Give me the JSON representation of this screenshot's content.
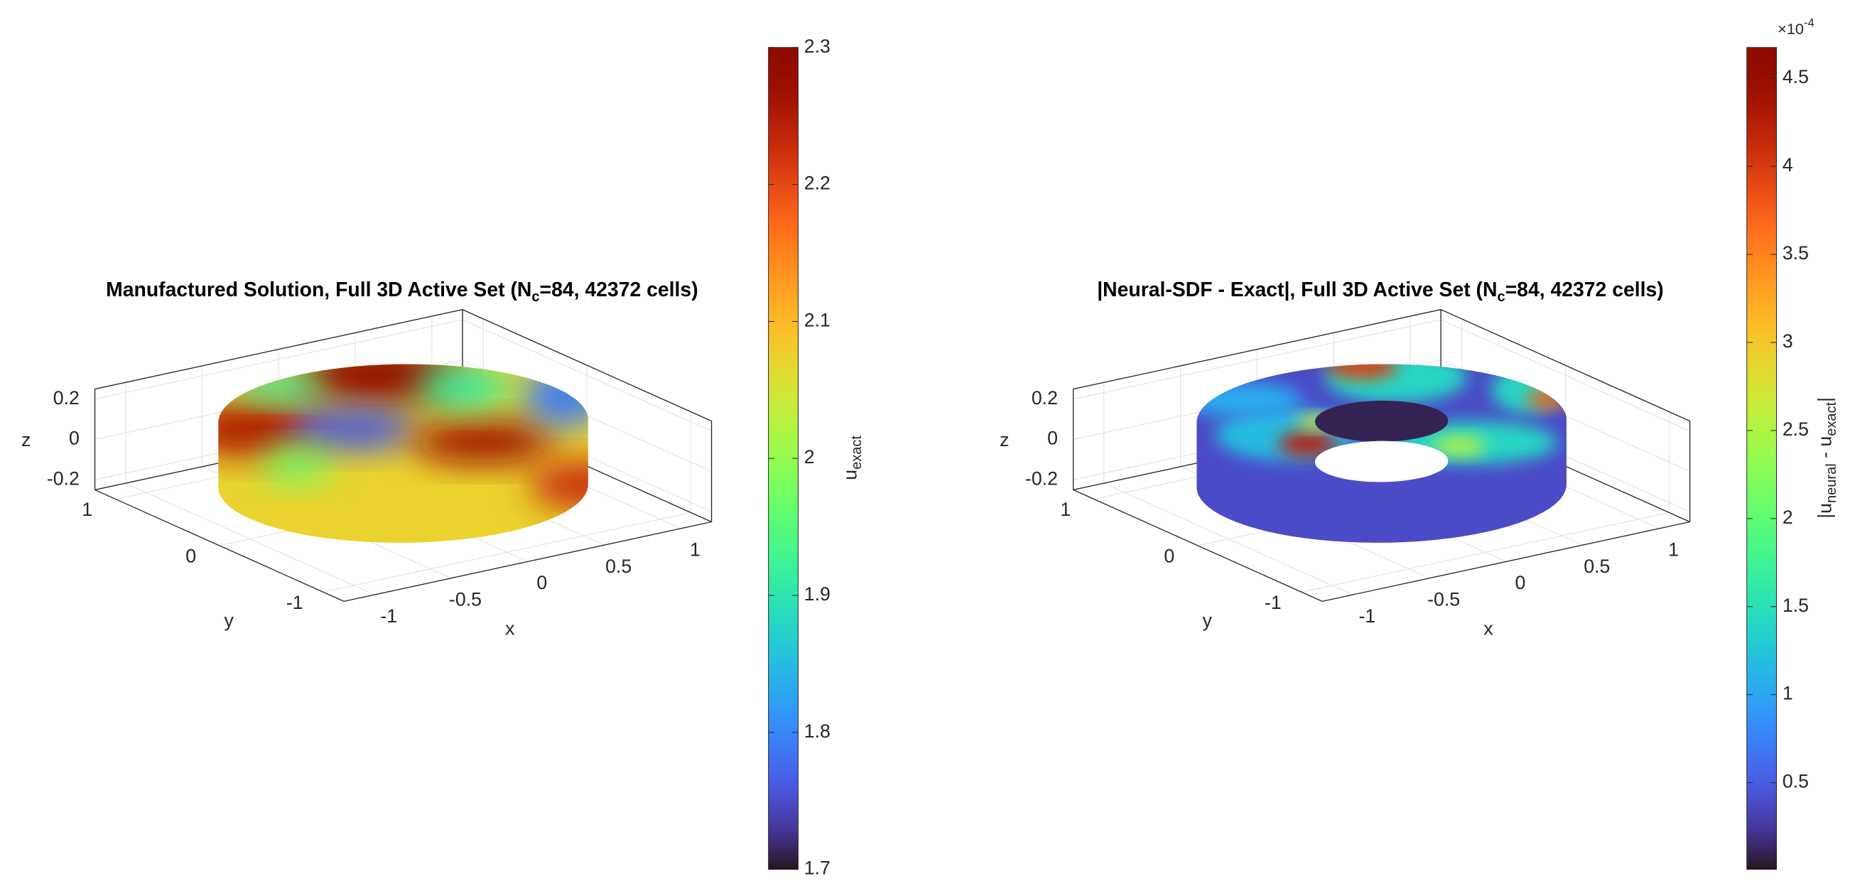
{
  "chart_data": [
    {
      "type": "scatter3d",
      "title": [
        "Manufactured Solution, Full 3D Active Set (N",
        "c",
        "=84, 42372 cells)"
      ],
      "xlabel": "x",
      "ylabel": "y",
      "zlabel": "z",
      "xlim": [
        -1.2,
        1.2
      ],
      "ylim": [
        -1.2,
        1.2
      ],
      "zlim": [
        -0.25,
        0.25
      ],
      "xticks": [
        -1,
        -0.5,
        0,
        0.5,
        1
      ],
      "yticks": [
        -1,
        0,
        1
      ],
      "zticks": [
        -0.2,
        0,
        0.2
      ],
      "grid": true,
      "colormap": "turbo",
      "clim": [
        1.7,
        2.3
      ],
      "cticks": [
        1.7,
        1.8,
        1.9,
        2,
        2.1,
        2.2,
        2.3
      ],
      "colorbar_label": [
        "u",
        "exact"
      ]
    },
    {
      "type": "scatter3d",
      "title": [
        "|Neural-SDF - Exact|, Full 3D Active Set (N",
        "c",
        "=84, 42372 cells)"
      ],
      "xlabel": "x",
      "ylabel": "y",
      "zlabel": "z",
      "xlim": [
        -1.2,
        1.2
      ],
      "ylim": [
        -1.2,
        1.2
      ],
      "zlim": [
        -0.25,
        0.25
      ],
      "xticks": [
        -1,
        -0.5,
        0,
        0.5,
        1
      ],
      "yticks": [
        -1,
        0,
        1
      ],
      "zticks": [
        -0.2,
        0,
        0.2
      ],
      "grid": true,
      "colormap": "turbo",
      "clim": [
        8e-07,
        0.0004675
      ],
      "cticks": [
        {
          "value": 5e-05,
          "label": "0.5"
        },
        {
          "value": 0.0001,
          "label": "1"
        },
        {
          "value": 0.00015,
          "label": "1.5"
        },
        {
          "value": 0.0002,
          "label": "2"
        },
        {
          "value": 0.00025,
          "label": "2.5"
        },
        {
          "value": 0.0003,
          "label": "3"
        },
        {
          "value": 0.00035,
          "label": "3.5"
        },
        {
          "value": 0.0004,
          "label": "4"
        },
        {
          "value": 0.00045,
          "label": "4.5"
        }
      ],
      "colorbar_exponent": [
        "×10",
        "-4"
      ],
      "colorbar_label": [
        "|u",
        "neural",
        " - u",
        "exact",
        "|"
      ]
    }
  ]
}
